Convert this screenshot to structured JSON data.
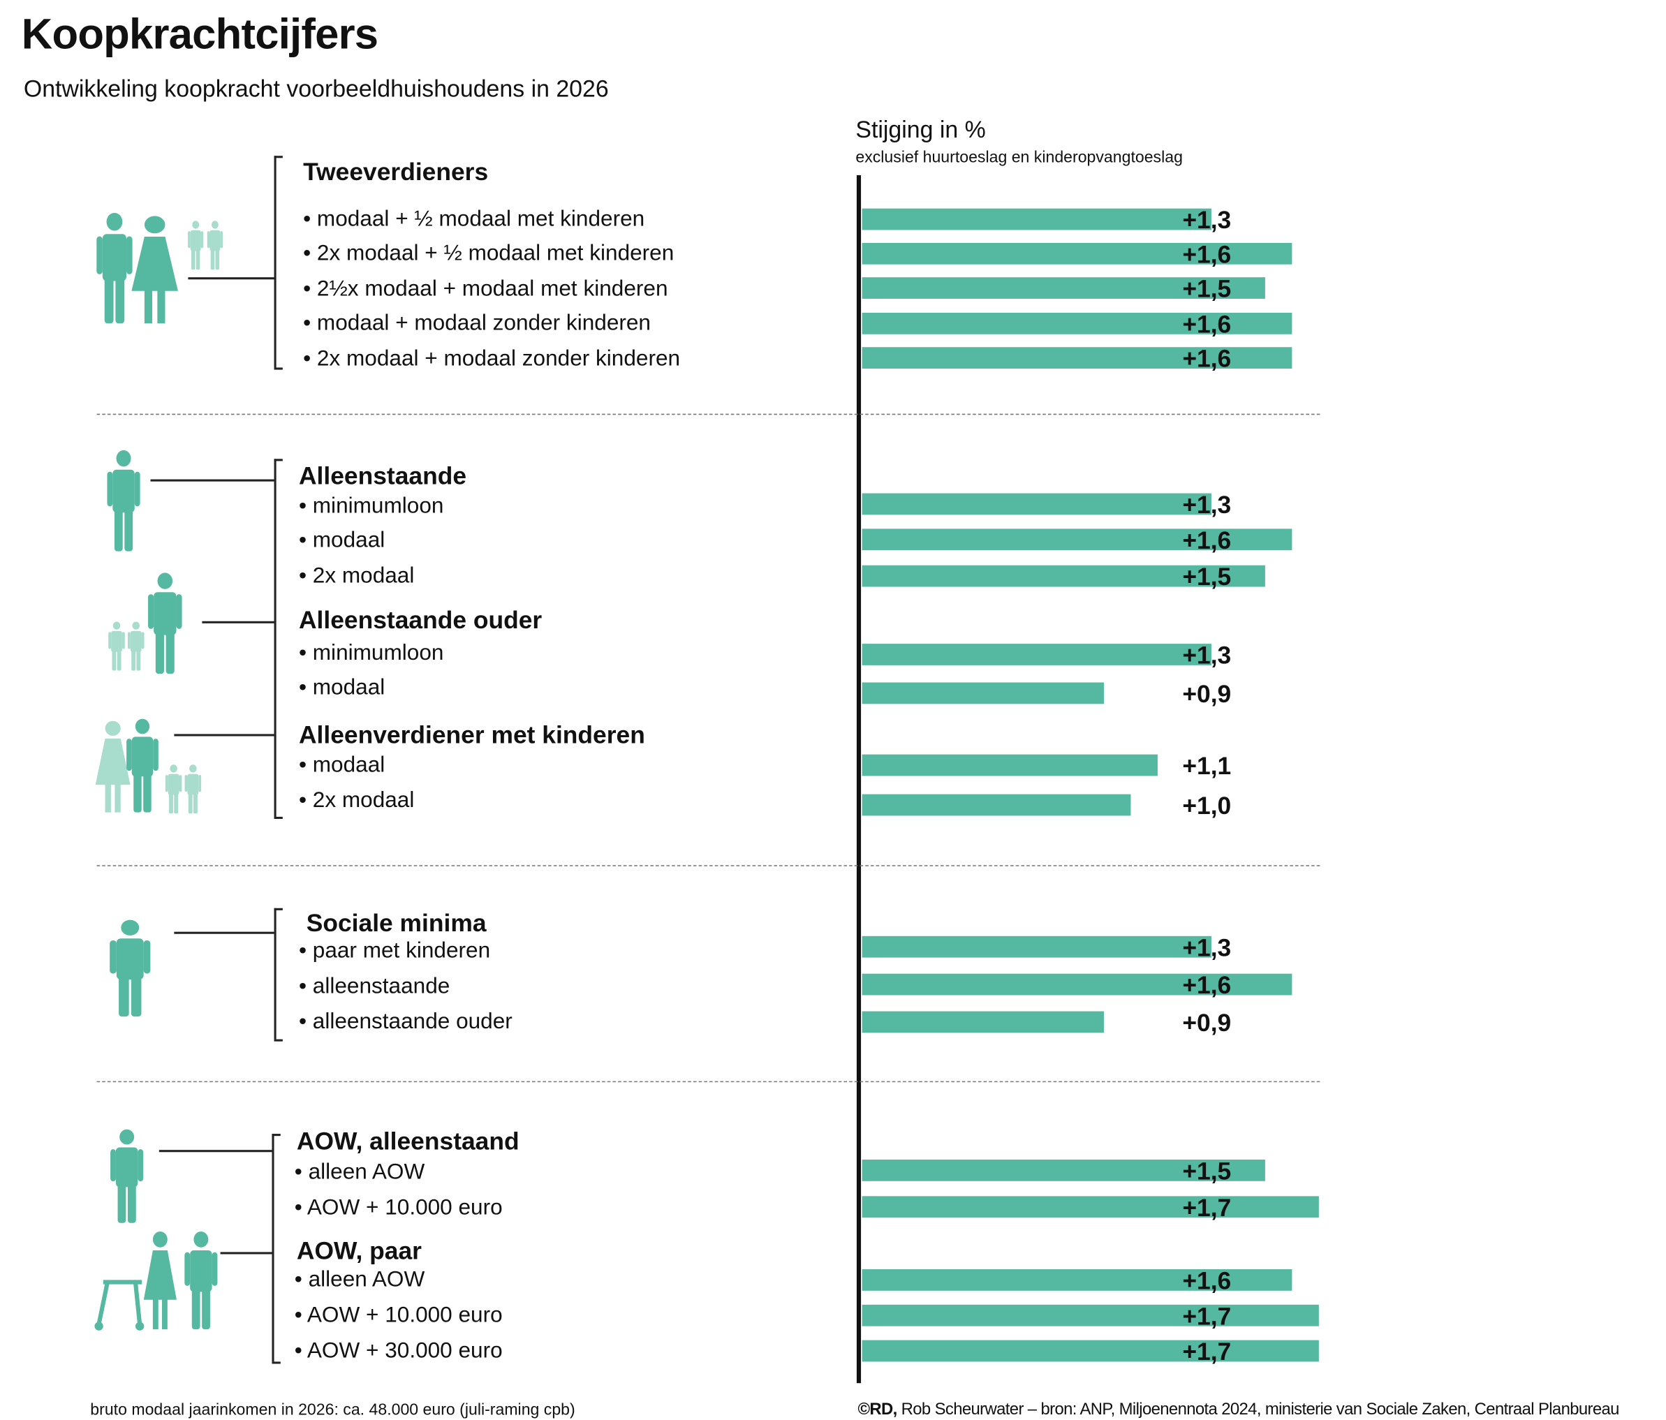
{
  "title": "Koopkrachtcijfers",
  "subtitle": "Ontwikkeling koopkracht voorbeeldhuishoudens in 2026",
  "footer_left": "bruto modaal jaarinkomen in 2026: ca. 48.000 euro (juli-raming cpb)",
  "footer_right_brand": "©RD,",
  "footer_right": " Rob Scheurwater – bron: ANP, Miljoenennota 2024, ministerie van Sociale Zaken, Centraal Planbureau",
  "colors": {
    "bar": "#55b8a0",
    "icon": "#55b8a0",
    "icon_light": "#a8dccd"
  },
  "chart_data": {
    "type": "bar",
    "orientation": "horizontal",
    "title": "Stijging in %",
    "subtitle": "exclusief huurtoeslag en kinderopvangtoeslag",
    "groups": [
      {
        "label": "Tweeverdieners",
        "icon": "couple-with-children-icon",
        "items": [
          {
            "label": "• modaal + ½ modaal met kinderen",
            "value": 1.3,
            "display": "+1,3"
          },
          {
            "label": "• 2x modaal + ½ modaal met kinderen",
            "value": 1.6,
            "display": "+1,6"
          },
          {
            "label": "• 2½x modaal + modaal met kinderen",
            "value": 1.5,
            "display": "+1,5"
          },
          {
            "label": "• modaal + modaal zonder kinderen",
            "value": 1.6,
            "display": "+1,6"
          },
          {
            "label": "• 2x modaal + modaal zonder kinderen",
            "value": 1.6,
            "display": "+1,6"
          }
        ]
      },
      {
        "label": "Alleenstaande",
        "icon": "single-person-icon",
        "items": [
          {
            "label": "• minimumloon",
            "value": 1.3,
            "display": "+1,3"
          },
          {
            "label": "• modaal",
            "value": 1.6,
            "display": "+1,6"
          },
          {
            "label": "• 2x modaal",
            "value": 1.5,
            "display": "+1,5"
          }
        ]
      },
      {
        "label": "Alleenstaande ouder",
        "icon": "single-parent-icon",
        "items": [
          {
            "label": "• minimumloon",
            "value": 1.3,
            "display": "+1,3"
          },
          {
            "label": "• modaal",
            "value": 0.9,
            "display": "+0,9"
          }
        ]
      },
      {
        "label": "Alleenverdiener met kinderen",
        "icon": "family-icon",
        "items": [
          {
            "label": "• modaal",
            "value": 1.1,
            "display": "+1,1"
          },
          {
            "label": "• 2x modaal",
            "value": 1.0,
            "display": "+1,0"
          }
        ]
      },
      {
        "label": "Sociale minima",
        "icon": "social-minimum-person-icon",
        "items": [
          {
            "label": "• paar met kinderen",
            "value": 1.3,
            "display": "+1,3"
          },
          {
            "label": "• alleenstaande",
            "value": 1.6,
            "display": "+1,6"
          },
          {
            "label": "• alleenstaande ouder",
            "value": 0.9,
            "display": "+0,9"
          }
        ]
      },
      {
        "label": "AOW, alleenstaand",
        "icon": "elderly-person-icon",
        "items": [
          {
            "label": "• alleen AOW",
            "value": 1.5,
            "display": "+1,5"
          },
          {
            "label": "• AOW + 10.000 euro",
            "value": 1.7,
            "display": "+1,7"
          }
        ]
      },
      {
        "label": "AOW, paar",
        "icon": "elderly-couple-icon",
        "items": [
          {
            "label": "• alleen AOW",
            "value": 1.6,
            "display": "+1,6"
          },
          {
            "label": "• AOW + 10.000 euro",
            "value": 1.7,
            "display": "+1,7"
          },
          {
            "label": "• AOW + 30.000 euro",
            "value": 1.7,
            "display": "+1,7"
          }
        ]
      }
    ]
  }
}
